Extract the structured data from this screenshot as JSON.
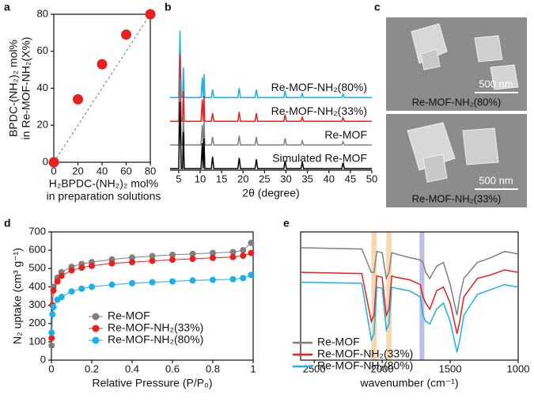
{
  "panel_labels": [
    "a",
    "b",
    "c",
    "d",
    "e"
  ],
  "images": [
    {
      "scale_bar": "500 nm",
      "caption": "Re-MOF-NH₂(80%)"
    },
    {
      "scale_bar": "500 nm",
      "caption": "Re-MOF-NH₂(33%)"
    }
  ],
  "chart_data": [
    {
      "type": "scatter",
      "x_label": [
        "H₂BPDC-(NH₂)₂ mol%",
        "in preparation solutions"
      ],
      "y_label": [
        "BPDC-(NH₂)₂ mol%",
        "in Re-MOF-NH₂(X%)"
      ],
      "x": [
        0,
        20,
        40,
        60,
        80
      ],
      "values": [
        0,
        34,
        53,
        69,
        80
      ],
      "color": "#e8201e",
      "xlim": [
        0,
        80
      ],
      "ylim": [
        0,
        80
      ],
      "xticks": [
        0,
        20,
        40,
        60,
        80
      ],
      "yticks": [
        0,
        20,
        40,
        60,
        80
      ]
    },
    {
      "type": "line",
      "x_label": "2θ (degree)",
      "x": [
        3,
        5.0,
        5.3,
        5.6,
        5.9,
        6.1,
        6.3,
        10.2,
        10.5,
        10.7,
        10.9,
        11.1,
        12.6,
        12.9,
        13.2,
        18.8,
        19.1,
        19.4,
        22.8,
        23.1,
        23.4,
        29.5,
        29.8,
        30.1,
        33.5,
        33.8,
        34.1,
        43.0,
        43.3,
        43.6,
        50
      ],
      "series": [
        {
          "name": "Re-MOF-NH₂(80%)",
          "color": "#1ab0e8",
          "values": [
            0,
            0,
            100,
            0,
            0,
            45,
            0,
            0,
            30,
            0,
            35,
            0,
            0,
            12,
            0,
            0,
            14,
            0,
            0,
            12,
            0,
            0,
            10,
            0,
            0,
            6,
            0,
            0,
            5,
            0,
            0
          ]
        },
        {
          "name": "Re-MOF-NH₂(33%)",
          "color": "#e8201e",
          "values": [
            0,
            0,
            100,
            0,
            0,
            45,
            0,
            0,
            32,
            0,
            38,
            0,
            0,
            12,
            0,
            0,
            14,
            0,
            0,
            12,
            0,
            0,
            10,
            0,
            0,
            6,
            0,
            0,
            5,
            0,
            0
          ]
        },
        {
          "name": "Re-MOF",
          "color": "#7f7f7f",
          "values": [
            0,
            0,
            100,
            0,
            0,
            42,
            0,
            0,
            30,
            0,
            36,
            0,
            0,
            12,
            0,
            0,
            14,
            0,
            0,
            12,
            0,
            0,
            10,
            0,
            0,
            6,
            0,
            0,
            5,
            0,
            0
          ]
        },
        {
          "name": "Simulated Re-MOF",
          "color": "#000000",
          "values": [
            0,
            0,
            100,
            0,
            0,
            55,
            0,
            0,
            38,
            0,
            45,
            0,
            0,
            18,
            0,
            0,
            16,
            0,
            0,
            14,
            0,
            0,
            12,
            0,
            0,
            10,
            0,
            0,
            9,
            0,
            0
          ]
        }
      ],
      "xlim": [
        3,
        50
      ],
      "xticks": [
        5,
        10,
        15,
        20,
        25,
        30,
        35,
        40,
        45,
        50
      ]
    },
    {
      "type": "scatter",
      "x_label": "Relative Pressure (P/P₀)",
      "y_label": "N₂ uptake (cm³ g⁻¹)",
      "x": [
        0.001,
        0.005,
        0.01,
        0.03,
        0.05,
        0.1,
        0.15,
        0.2,
        0.3,
        0.4,
        0.5,
        0.6,
        0.7,
        0.8,
        0.9,
        0.95,
        0.99
      ],
      "series": [
        {
          "name": "Re-MOF",
          "color": "#7f7f7f",
          "values": [
            80,
            300,
            400,
            450,
            480,
            510,
            525,
            535,
            550,
            560,
            568,
            575,
            580,
            585,
            590,
            600,
            640
          ]
        },
        {
          "name": "Re-MOF-NH₂(33%)",
          "color": "#e8201e",
          "values": [
            120,
            300,
            380,
            430,
            460,
            490,
            505,
            515,
            528,
            535,
            542,
            548,
            553,
            558,
            563,
            570,
            585
          ]
        },
        {
          "name": "Re-MOF-NH₂(80%)",
          "color": "#1ab0e8",
          "values": [
            150,
            250,
            290,
            330,
            345,
            375,
            390,
            400,
            412,
            420,
            425,
            430,
            435,
            438,
            442,
            448,
            465
          ]
        }
      ],
      "xlim": [
        0,
        1
      ],
      "ylim": [
        0,
        700
      ],
      "xticks": [
        0.0,
        0.2,
        0.4,
        0.6,
        0.8,
        1.0
      ],
      "yticks": [
        0,
        100,
        200,
        300,
        400,
        500,
        600,
        700
      ]
    },
    {
      "type": "line",
      "x_label": "wavenumber (cm⁻¹)",
      "x": [
        2600,
        2150,
        2080,
        2060,
        2040,
        2000,
        1970,
        1950,
        1930,
        1900,
        1800,
        1720,
        1700,
        1680,
        1650,
        1600,
        1550,
        1500,
        1450,
        1430,
        1400,
        1300,
        1200,
        1100,
        1000
      ],
      "series": [
        {
          "name": "Re-MOF",
          "color": "#7f7f7f",
          "values": [
            100,
            99,
            80,
            80,
            97,
            96,
            75,
            80,
            96,
            95,
            92,
            90,
            88,
            80,
            75,
            85,
            88,
            70,
            45,
            60,
            75,
            88,
            92,
            97,
            95
          ]
        },
        {
          "name": "Re-MOF-NH₂(33%)",
          "color": "#e8201e",
          "values": [
            80,
            79,
            40,
            45,
            77,
            76,
            45,
            50,
            77,
            76,
            74,
            70,
            60,
            55,
            50,
            65,
            68,
            55,
            30,
            40,
            60,
            75,
            78,
            82,
            80
          ]
        },
        {
          "name": "Re-MOF-NH₂(80%)",
          "color": "#1ab0e8",
          "values": [
            72,
            71,
            25,
            30,
            68,
            67,
            33,
            38,
            68,
            67,
            65,
            60,
            45,
            40,
            38,
            50,
            55,
            40,
            15,
            25,
            45,
            62,
            66,
            70,
            68
          ]
        }
      ],
      "bands": [
        {
          "range": [
            2080,
            2040
          ],
          "color": "#f5c78f"
        },
        {
          "range": [
            1970,
            1930
          ],
          "color": "#f5c78f"
        },
        {
          "range": [
            1725,
            1690
          ],
          "color": "#9fa3d6"
        }
      ],
      "xlim": [
        2600,
        1000
      ],
      "xticks": [
        2500,
        2000,
        1500,
        1000
      ]
    }
  ]
}
